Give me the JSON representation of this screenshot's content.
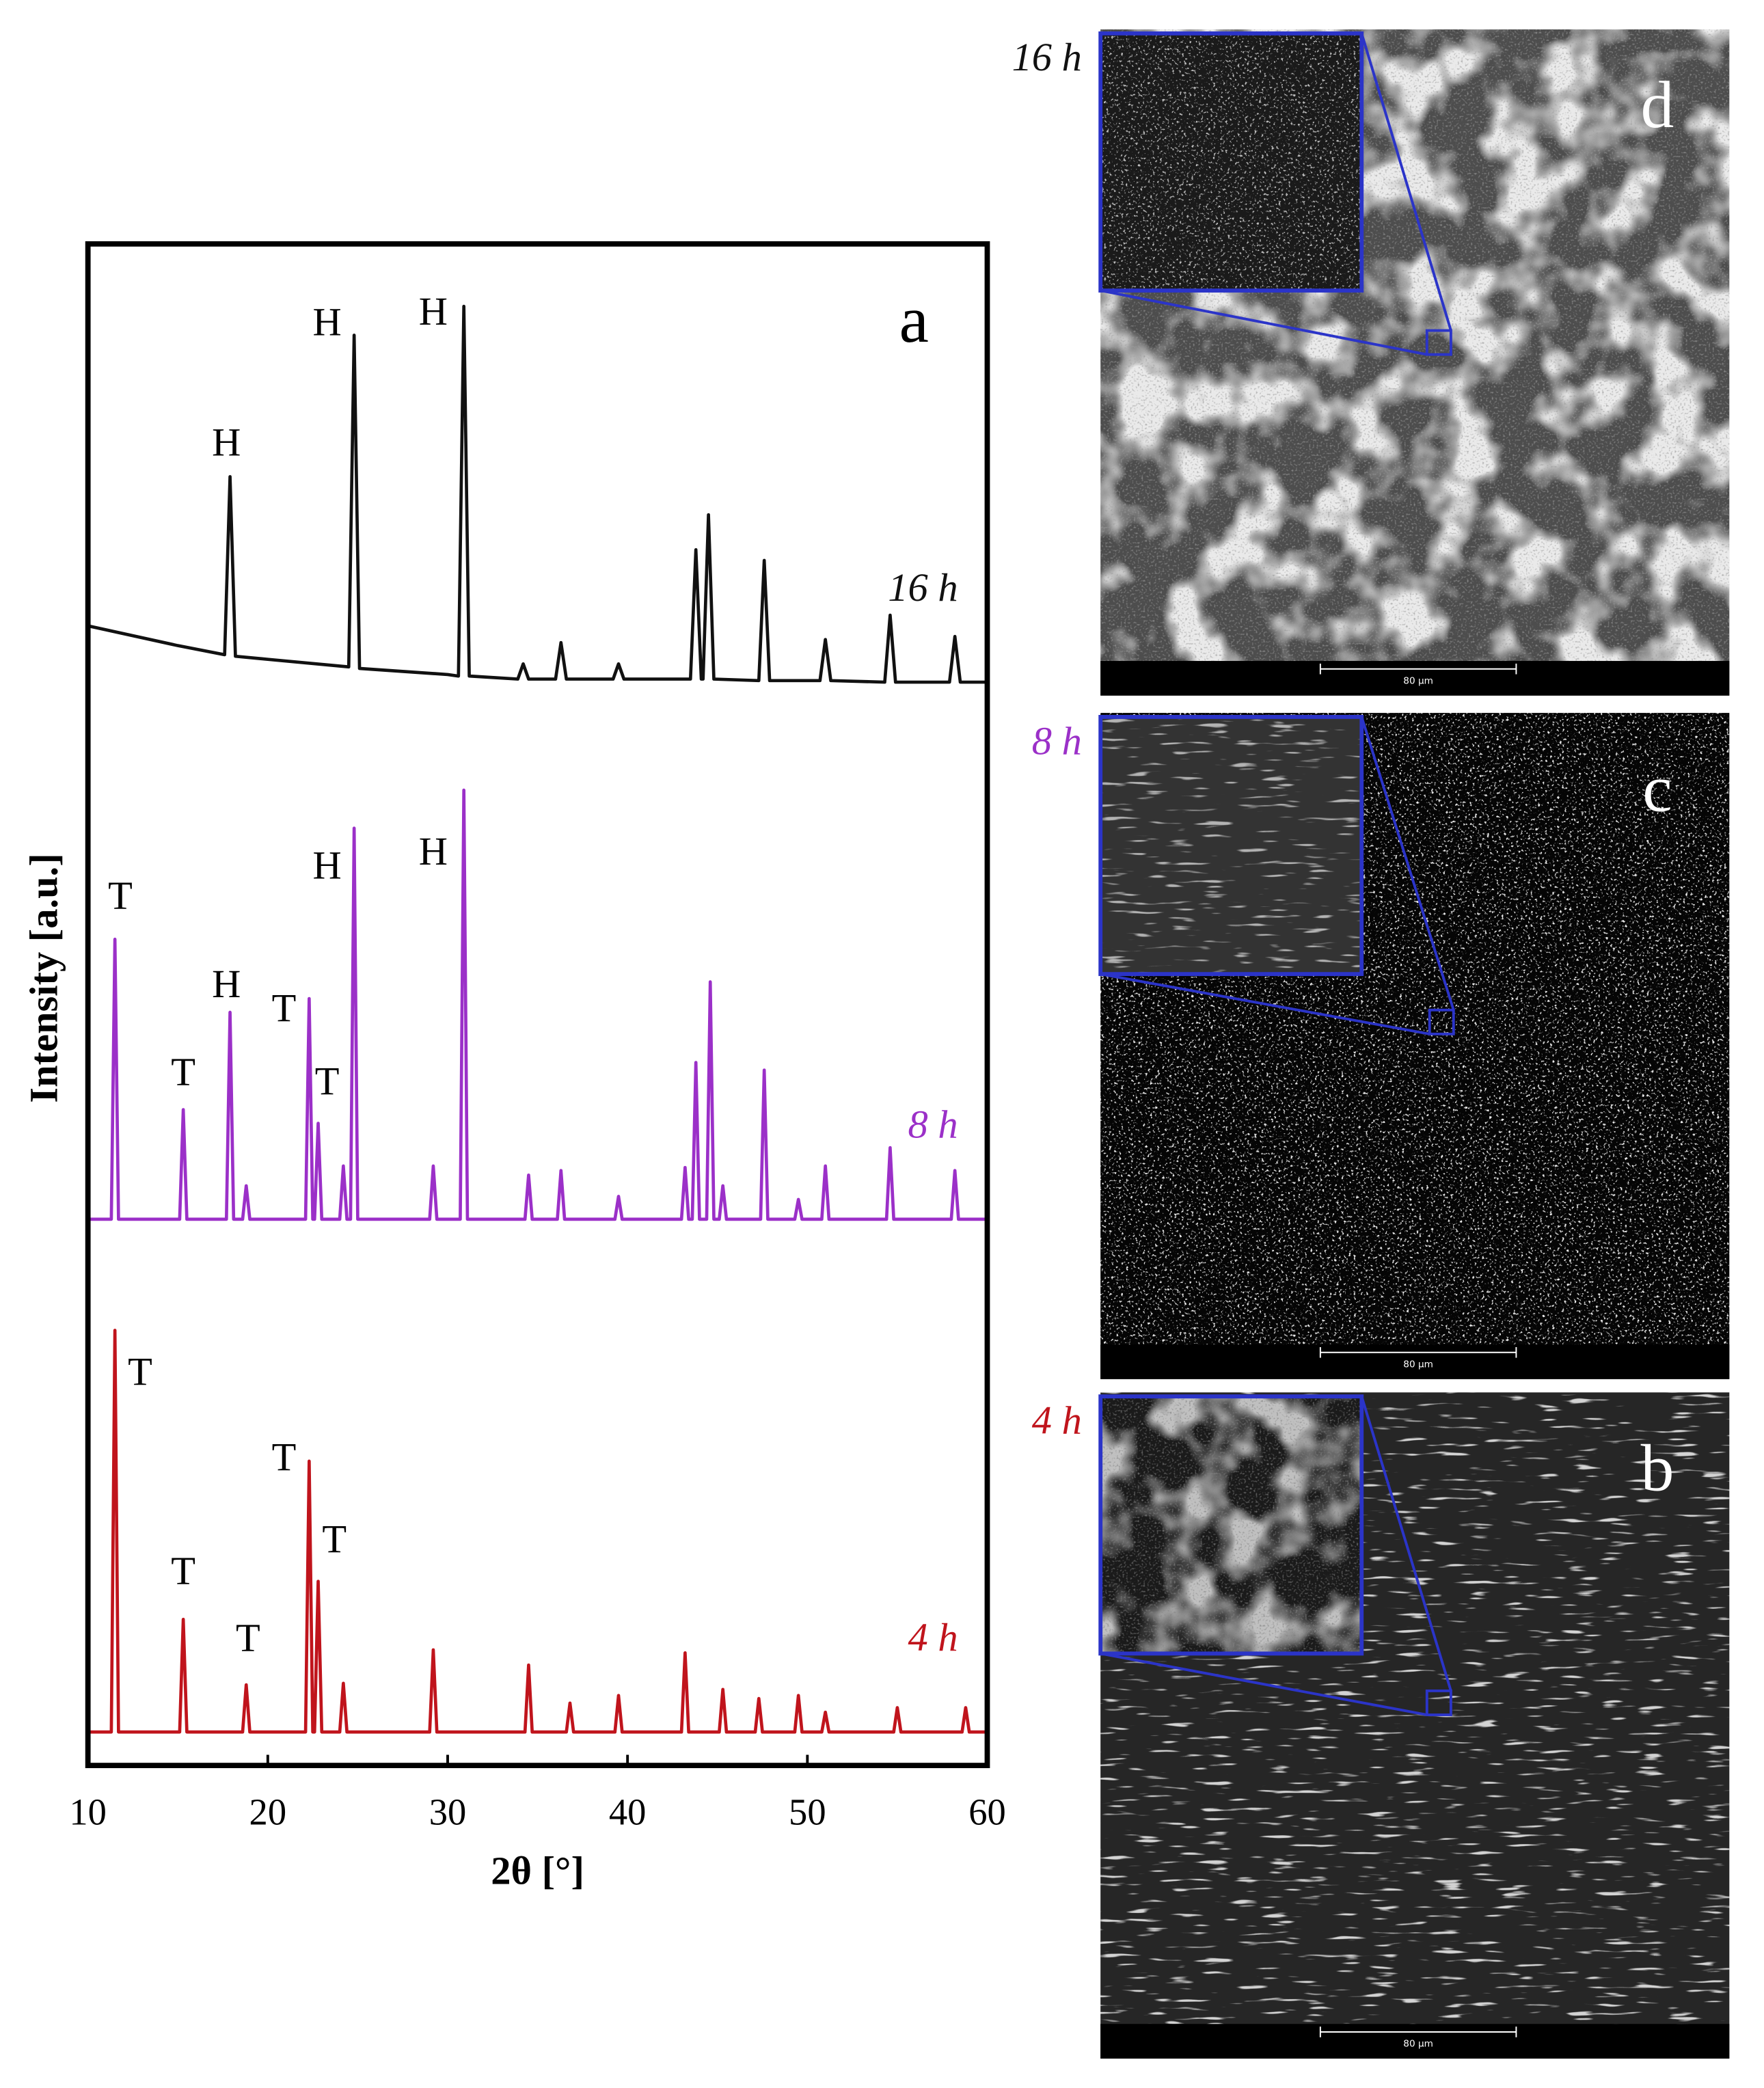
{
  "chart_data": {
    "type": "line",
    "panel": "a",
    "xlabel": "2θ [°]",
    "ylabel": "Intensity [a.u.]",
    "xlim": [
      10,
      60
    ],
    "xticks": [
      10,
      20,
      30,
      40,
      50,
      60
    ],
    "ylim": [
      0,
      100
    ],
    "series": [
      {
        "name": "16 h",
        "color": "#111111",
        "x": [
          10,
          15,
          17.6,
          17.9,
          18.2,
          20,
          24.5,
          24.8,
          25.1,
          30,
          30.6,
          30.9,
          31.2,
          33.9,
          34.2,
          34.5,
          36,
          36.3,
          36.6,
          39.2,
          39.5,
          39.8,
          43.5,
          43.8,
          44.1,
          44.2,
          44.5,
          44.8,
          47.3,
          47.6,
          47.9,
          50.7,
          51,
          51.3,
          54.3,
          54.6,
          54.9,
          57.9,
          58.2,
          58.5,
          60
        ],
        "values": [
          74.9,
          73.6,
          73.0,
          84.7,
          72.9,
          72.7,
          72.2,
          94.0,
          72.1,
          71.7,
          71.6,
          95.9,
          71.6,
          71.4,
          72.4,
          71.4,
          71.4,
          73.8,
          71.4,
          71.4,
          72.4,
          71.4,
          71.4,
          79.9,
          71.4,
          71.4,
          82.2,
          71.4,
          71.3,
          79.2,
          71.3,
          71.3,
          74.0,
          71.3,
          71.2,
          75.6,
          71.2,
          71.2,
          74.2,
          71.2,
          71.2
        ]
      },
      {
        "name": "8 h",
        "color": "#9b30c8",
        "x": [
          10,
          11.3,
          11.5,
          11.7,
          15.1,
          15.3,
          15.5,
          17.7,
          17.9,
          18.1,
          18.6,
          18.8,
          19.0,
          22.1,
          22.3,
          22.5,
          22.6,
          22.8,
          23.0,
          24.0,
          24.2,
          24.4,
          24.6,
          24.8,
          25.0,
          29.0,
          29.2,
          29.4,
          30.7,
          30.9,
          31.1,
          34.3,
          34.5,
          34.7,
          36.1,
          36.3,
          36.5,
          39.3,
          39.5,
          39.7,
          43.0,
          43.2,
          43.4,
          43.6,
          43.8,
          44.0,
          44.4,
          44.6,
          44.8,
          45.1,
          45.3,
          45.5,
          47.4,
          47.6,
          47.8,
          49.3,
          49.5,
          49.7,
          50.8,
          51.0,
          51.2,
          54.4,
          54.6,
          54.8,
          58.0,
          58.2,
          58.4,
          60
        ],
        "values": [
          35.9,
          35.9,
          54.3,
          35.9,
          35.9,
          43.1,
          35.9,
          35.9,
          49.5,
          35.9,
          35.9,
          38.1,
          35.9,
          35.9,
          50.4,
          35.9,
          35.9,
          42.2,
          35.9,
          35.9,
          39.4,
          35.9,
          35.9,
          61.6,
          35.9,
          35.9,
          39.4,
          35.9,
          35.9,
          64.1,
          35.9,
          35.9,
          38.8,
          35.9,
          35.9,
          39.1,
          35.9,
          35.9,
          37.4,
          35.9,
          35.9,
          39.3,
          35.9,
          35.9,
          46.2,
          35.9,
          35.9,
          51.5,
          35.9,
          35.9,
          38.1,
          35.9,
          35.9,
          45.7,
          35.9,
          35.9,
          37.2,
          35.9,
          35.9,
          39.4,
          35.9,
          35.9,
          40.6,
          35.9,
          35.9,
          39.1,
          35.9,
          35.9
        ]
      },
      {
        "name": "4 h",
        "color": "#c0141c",
        "x": [
          10,
          11.3,
          11.5,
          11.7,
          15.1,
          15.3,
          15.5,
          18.6,
          18.8,
          19.0,
          22.1,
          22.3,
          22.5,
          22.6,
          22.8,
          23.0,
          24.0,
          24.2,
          24.4,
          29.0,
          29.2,
          29.4,
          34.3,
          34.5,
          34.7,
          36.6,
          36.8,
          37.0,
          39.3,
          39.5,
          39.7,
          43.0,
          43.2,
          43.4,
          45.1,
          45.3,
          45.5,
          47.1,
          47.3,
          47.5,
          49.3,
          49.5,
          49.7,
          50.8,
          51.0,
          51.2,
          54.8,
          55.0,
          55.2,
          58.6,
          58.8,
          59.0,
          60
        ],
        "values": [
          2.2,
          2.2,
          28.6,
          2.2,
          2.2,
          9.6,
          2.2,
          2.2,
          5.3,
          2.2,
          2.2,
          20.0,
          2.2,
          2.2,
          12.1,
          2.2,
          2.2,
          5.4,
          2.2,
          2.2,
          7.6,
          2.2,
          2.2,
          6.6,
          2.2,
          2.2,
          4.1,
          2.2,
          2.2,
          4.6,
          2.2,
          2.2,
          7.4,
          2.2,
          2.2,
          5.0,
          2.2,
          2.2,
          4.4,
          2.2,
          2.2,
          4.6,
          2.2,
          2.2,
          3.5,
          2.2,
          2.2,
          3.8,
          2.2,
          2.2,
          3.8,
          2.2,
          2.2
        ]
      }
    ],
    "annotations": [
      {
        "text": "H",
        "x": 17.7,
        "y": 86.7
      },
      {
        "text": "H",
        "x": 23.3,
        "y": 94.6
      },
      {
        "text": "H",
        "x": 29.2,
        "y": 95.3
      },
      {
        "text": "T",
        "x": 11.8,
        "y": 56.9
      },
      {
        "text": "T",
        "x": 15.3,
        "y": 45.3
      },
      {
        "text": "H",
        "x": 17.7,
        "y": 51.1
      },
      {
        "text": "T",
        "x": 20.9,
        "y": 49.5
      },
      {
        "text": "T",
        "x": 23.3,
        "y": 44.7
      },
      {
        "text": "H",
        "x": 23.3,
        "y": 58.9
      },
      {
        "text": "H",
        "x": 29.2,
        "y": 59.8
      },
      {
        "text": "T",
        "x": 12.9,
        "y": 25.6
      },
      {
        "text": "T",
        "x": 15.3,
        "y": 12.5
      },
      {
        "text": "T",
        "x": 18.9,
        "y": 8.1
      },
      {
        "text": "T",
        "x": 20.9,
        "y": 20.0
      },
      {
        "text": "T",
        "x": 23.7,
        "y": 14.6
      }
    ]
  },
  "micrographs": [
    {
      "time": "16 h",
      "panel": "d",
      "scale_bar": "80 µm",
      "color": "#111111"
    },
    {
      "time": "8 h",
      "panel": "c",
      "scale_bar": "80 µm",
      "color": "#9b30c8"
    },
    {
      "time": "4 h",
      "panel": "b",
      "scale_bar": "80 µm",
      "color": "#c0141c"
    }
  ]
}
